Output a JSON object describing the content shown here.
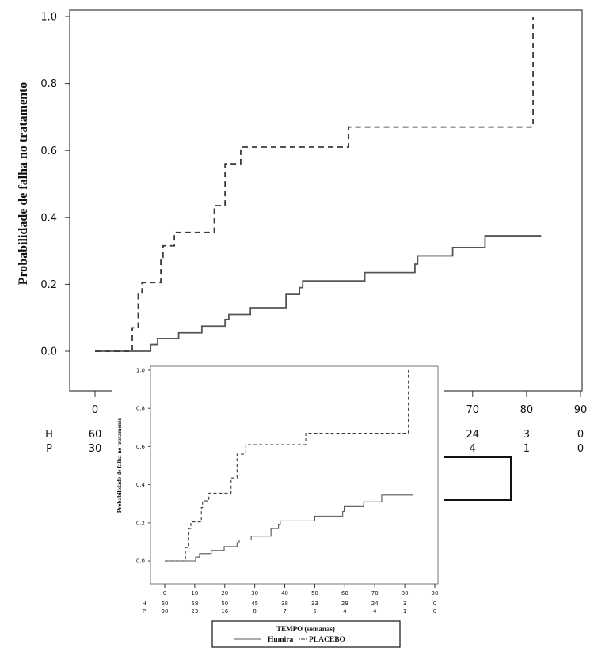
{
  "chart_data": [
    {
      "id": "main",
      "type": "line",
      "step": true,
      "ylabel": "Probabilidade de falha no tratamento",
      "xlim": [
        0,
        90
      ],
      "ylim": [
        0,
        1
      ],
      "xticks": [
        "0",
        "10",
        "20",
        "30",
        "40",
        "50",
        "60",
        "70",
        "80",
        "90"
      ],
      "yticks": [
        "0.0",
        "0.2",
        "0.4",
        "0.6",
        "0.8",
        "1.0"
      ],
      "risk_table": {
        "rows": [
          {
            "label": "H",
            "values": [
              "60",
              "58",
              "50",
              "45",
              "38",
              "33",
              "29",
              "24",
              "3",
              "0"
            ]
          },
          {
            "label": "P",
            "values": [
              "30",
              "23",
              "16",
              "8",
              "7",
              "5",
              "4",
              "4",
              "1",
              "0"
            ]
          }
        ]
      }
    },
    {
      "id": "inset",
      "type": "line",
      "step": true,
      "ylabel": "Probabilidade de falha no tratamento",
      "xlabel": "TEMPO (semanas)",
      "xlim": [
        0,
        90
      ],
      "ylim": [
        0,
        1
      ],
      "xticks": [
        "0",
        "10",
        "20",
        "30",
        "40",
        "50",
        "60",
        "70",
        "80",
        "90"
      ],
      "yticks": [
        "0.0",
        "0.2",
        "0.4",
        "0.6",
        "0.8",
        "1.0"
      ],
      "risk_table": {
        "rows": [
          {
            "label": "H",
            "values": [
              "60",
              "58",
              "50",
              "45",
              "38",
              "33",
              "29",
              "24",
              "3",
              "0"
            ]
          },
          {
            "label": "P",
            "values": [
              "30",
              "23",
              "16",
              "8",
              "7",
              "5",
              "4",
              "4",
              "1",
              "0"
            ]
          }
        ]
      },
      "legend": {
        "title": "TEMPO (semanas)",
        "entries": [
          "Humira",
          "PLACEBO"
        ],
        "placement": "bottom"
      }
    }
  ],
  "series": [
    {
      "name": "Humira",
      "style": "solid",
      "color": "#555555",
      "x": [
        0,
        10.3,
        11.6,
        15.5,
        19.8,
        24.1,
        24.8,
        28.8,
        35.4,
        37.9,
        38.5,
        50,
        59.3,
        59.8,
        66.3,
        72.3,
        82.7
      ],
      "y": [
        0,
        0.02,
        0.038,
        0.055,
        0.075,
        0.095,
        0.11,
        0.13,
        0.17,
        0.19,
        0.21,
        0.235,
        0.26,
        0.285,
        0.31,
        0.345,
        0.345
      ]
    },
    {
      "name": "PLACEBO",
      "style": "dashed",
      "color": "#3a3a3a",
      "x": [
        0,
        6.9,
        8.0,
        8.7,
        12.2,
        12.6,
        14.7,
        22.1,
        24.1,
        27.0,
        47.0,
        81.2
      ],
      "y": [
        0,
        0.07,
        0.17,
        0.205,
        0.28,
        0.315,
        0.355,
        0.435,
        0.56,
        0.61,
        0.67,
        1.0
      ]
    }
  ]
}
